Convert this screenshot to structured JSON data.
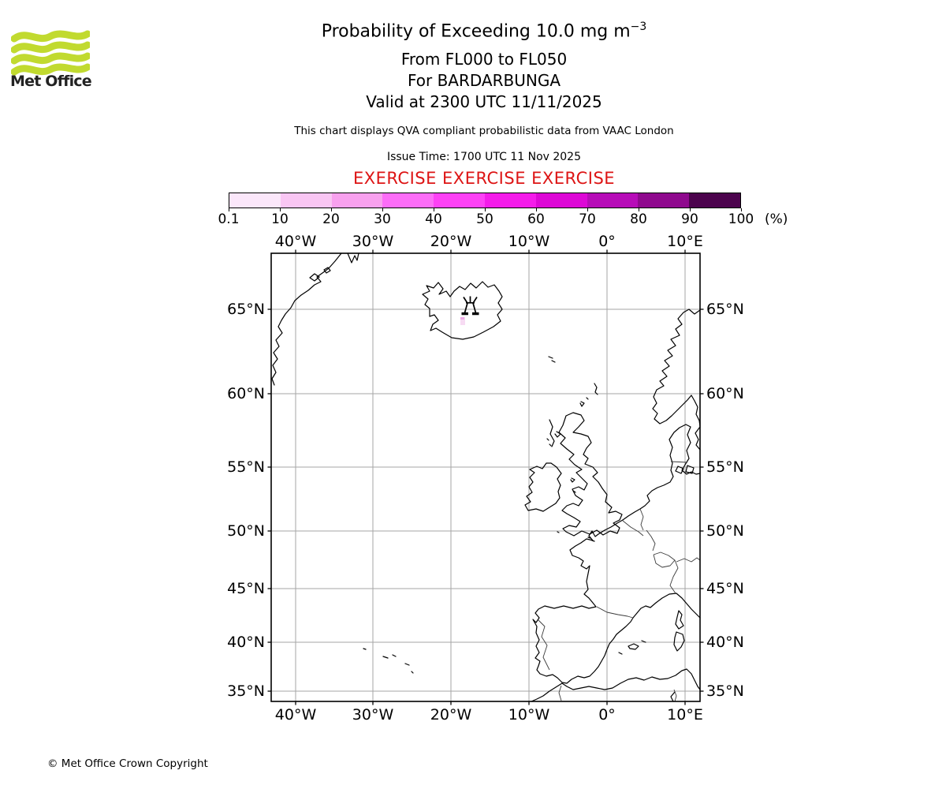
{
  "logo": {
    "text": "Met Office",
    "wave_color": "#c1da2f"
  },
  "header": {
    "title": "Probability of Exceeding 10.0 mg m",
    "title_superscript": "−3",
    "subtitle_lines": [
      "From FL000 to FL050",
      "For BARDARBUNGA",
      "Valid at 2300 UTC 11/11/2025"
    ],
    "note": "This chart displays QVA compliant probabilistic data from VAAC London",
    "issue_time": "Issue Time: 1700 UTC 11 Nov 2025",
    "exercise_banner": "EXERCISE EXERCISE EXERCISE",
    "exercise_color": "#dd1414"
  },
  "colorbar": {
    "tick_labels": [
      "0.1",
      "10",
      "20",
      "30",
      "40",
      "50",
      "60",
      "70",
      "80",
      "90",
      "100"
    ],
    "unit_label": "(%)",
    "segment_colors": [
      "#fbe7fa",
      "#f9c6f3",
      "#f8a1ee",
      "#fc6df7",
      "#fd41f5",
      "#f41cea",
      "#dd08d6",
      "#b70cb8",
      "#8f098e",
      "#4c034d"
    ]
  },
  "map": {
    "lon_labels": [
      "40°W",
      "30°W",
      "20°W",
      "10°W",
      "0°",
      "10°E"
    ],
    "lat_labels": [
      "65°N",
      "60°N",
      "55°N",
      "50°N",
      "45°N",
      "40°N",
      "35°N"
    ],
    "ash_low_color": "#f7dbf3",
    "ash_mid_color": "#efaae7"
  },
  "footer": {
    "copyright": "© Met Office Crown Copyright"
  }
}
